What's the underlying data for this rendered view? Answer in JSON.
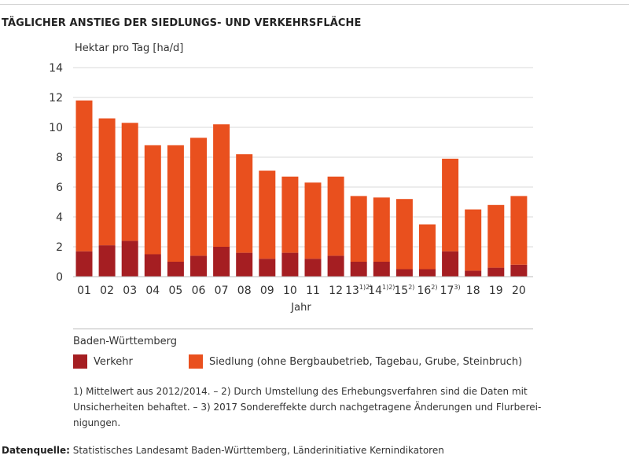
{
  "title": "TÄGLICHER ANSTIEG DER SIEDLUNGS- UND VERKEHRSFLÄCHE",
  "chart_data": {
    "type": "bar",
    "stacked": true,
    "ylabel": "Hektar pro Tag [ha/d]",
    "xlabel": "Jahr",
    "ylim": [
      0,
      14
    ],
    "yticks": [
      "0",
      "2",
      "4",
      "6",
      "8",
      "10",
      "12",
      "14"
    ],
    "grid": true,
    "categories": [
      {
        "label": "01",
        "sup": ""
      },
      {
        "label": "02",
        "sup": ""
      },
      {
        "label": "03",
        "sup": ""
      },
      {
        "label": "04",
        "sup": ""
      },
      {
        "label": "05",
        "sup": ""
      },
      {
        "label": "06",
        "sup": ""
      },
      {
        "label": "07",
        "sup": ""
      },
      {
        "label": "08",
        "sup": ""
      },
      {
        "label": "09",
        "sup": ""
      },
      {
        "label": "10",
        "sup": ""
      },
      {
        "label": "11",
        "sup": ""
      },
      {
        "label": "12",
        "sup": ""
      },
      {
        "label": "13",
        "sup": "1)2)"
      },
      {
        "label": "14",
        "sup": "1)2)"
      },
      {
        "label": "15",
        "sup": "2)"
      },
      {
        "label": "16",
        "sup": "2)"
      },
      {
        "label": "17",
        "sup": "3)"
      },
      {
        "label": "18",
        "sup": ""
      },
      {
        "label": "19",
        "sup": ""
      },
      {
        "label": "20",
        "sup": ""
      }
    ],
    "series": [
      {
        "name": "Verkehr",
        "color": "#a51e22",
        "values": [
          1.7,
          2.1,
          2.4,
          1.5,
          1.0,
          1.4,
          2.0,
          1.6,
          1.2,
          1.6,
          1.2,
          1.4,
          1.0,
          1.0,
          0.5,
          0.5,
          1.7,
          0.4,
          0.6,
          0.8
        ]
      },
      {
        "name": "Siedlung (ohne Bergbaubetrieb, Tagebau, Grube, Steinbruch)",
        "color": "#e9501e",
        "values": [
          10.1,
          8.5,
          7.9,
          7.3,
          7.8,
          7.9,
          8.2,
          6.6,
          5.9,
          5.1,
          5.1,
          5.3,
          4.4,
          4.3,
          4.7,
          3.0,
          6.2,
          4.1,
          4.2,
          4.6
        ]
      }
    ]
  },
  "legend": {
    "region": "Baden-Württemberg"
  },
  "footnote": {
    "line1": "1) Mittelwert aus 2012/2014. – 2) Durch Umstellung des Erhebungsverfahren sind die Daten mit",
    "line2": "Unsicherheiten behaftet.  – 3) 2017 Sondereffekte durch nachgetragene Änderungen und Flurberei-",
    "line3": "nigungen."
  },
  "source": {
    "label": "Datenquelle:",
    "text": " Statistisches Landesamt Baden-Württemberg, Länderinitiative Kernindikatoren"
  }
}
